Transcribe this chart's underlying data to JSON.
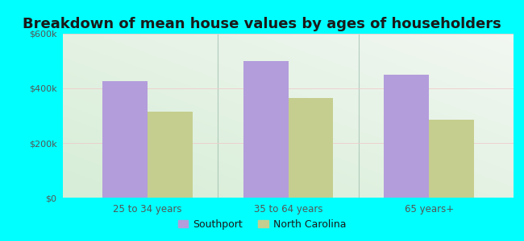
{
  "title": "Breakdown of mean house values by ages of householders",
  "categories": [
    "25 to 34 years",
    "35 to 64 years",
    "65 years+"
  ],
  "southport_values": [
    425000,
    500000,
    450000
  ],
  "nc_values": [
    315000,
    365000,
    285000
  ],
  "southport_color": "#b39ddb",
  "nc_color": "#c5ce8e",
  "bar_width": 0.32,
  "ylim": [
    0,
    600000
  ],
  "yticks": [
    0,
    200000,
    400000,
    600000
  ],
  "ytick_labels": [
    "$0",
    "$200k",
    "$400k",
    "$600k"
  ],
  "background_outer": "#00ffff",
  "legend_labels": [
    "Southport",
    "North Carolina"
  ],
  "title_fontsize": 13,
  "title_color": "#1a1a1a",
  "tick_color": "#555555",
  "grid_color": "#dddddd",
  "separator_color": "#aaccaa"
}
